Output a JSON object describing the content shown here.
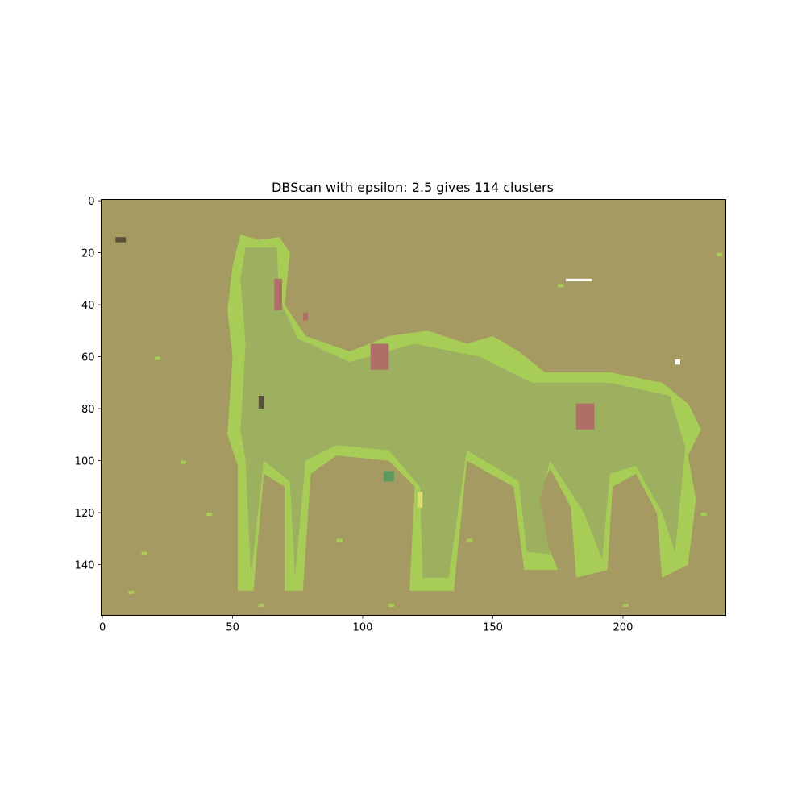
{
  "chart_data": {
    "type": "heatmap",
    "title": "DBScan with epsilon: 2.5 gives 114 clusters",
    "xlabel": "",
    "ylabel": "",
    "image_width": 240,
    "image_height": 160,
    "xlim": [
      -0.5,
      239.5
    ],
    "ylim": [
      159.5,
      -0.5
    ],
    "x_ticks": [
      0,
      50,
      100,
      150,
      200
    ],
    "x_tick_labels": [
      "0",
      "50",
      "100",
      "150",
      "200"
    ],
    "y_ticks": [
      0,
      20,
      40,
      60,
      80,
      100,
      120,
      140
    ],
    "y_tick_labels": [
      "0",
      "20",
      "40",
      "60",
      "80",
      "100",
      "120",
      "140"
    ],
    "background_color": "#a59a62",
    "body_color": "#9db060",
    "edge_color": "#a8cd57",
    "accent_colors": [
      "#b06e68",
      "#5a4e3c",
      "#5b9a5c",
      "#ffffff",
      "#d8e070"
    ]
  }
}
